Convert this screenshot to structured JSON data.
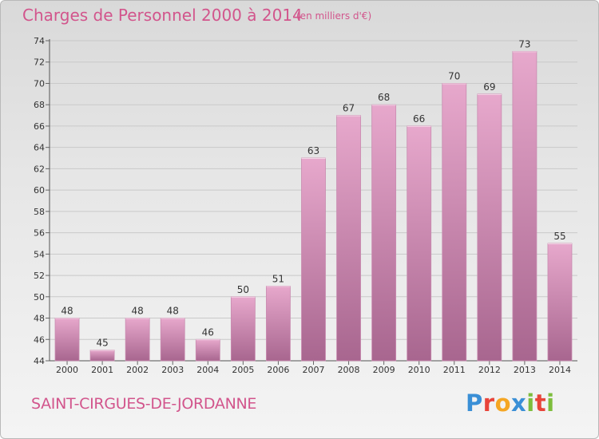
{
  "header": {
    "title": "Charges de Personnel 2000 à 2014",
    "subtitle": "(en milliers d'€)"
  },
  "footer": {
    "commune": "SAINT-CIRGUES-DE-JORDANNE",
    "logo": "Proxiti",
    "logo_colors": [
      "#3a8fd6",
      "#e8443a",
      "#f5a623",
      "#3a8fd6",
      "#7dbd3c",
      "#e8443a",
      "#7dbd3c"
    ]
  },
  "colors": {
    "accent": "#d2558c",
    "bar_top": "#e7a8cc",
    "bar_bottom": "#a8668f"
  },
  "chart_data": {
    "type": "bar",
    "categories": [
      "2000",
      "2001",
      "2002",
      "2003",
      "2004",
      "2005",
      "2006",
      "2007",
      "2008",
      "2009",
      "2010",
      "2011",
      "2012",
      "2013",
      "2014"
    ],
    "values": [
      48,
      45,
      48,
      48,
      46,
      50,
      51,
      63,
      67,
      68,
      66,
      70,
      69,
      73,
      55
    ],
    "yticks": [
      44,
      46,
      48,
      50,
      52,
      54,
      56,
      58,
      60,
      62,
      64,
      66,
      68,
      70,
      72,
      74
    ],
    "ylim": [
      44,
      74
    ],
    "grid": true,
    "title": "Charges de Personnel 2000 à 2014",
    "xlabel": "",
    "ylabel": ""
  }
}
